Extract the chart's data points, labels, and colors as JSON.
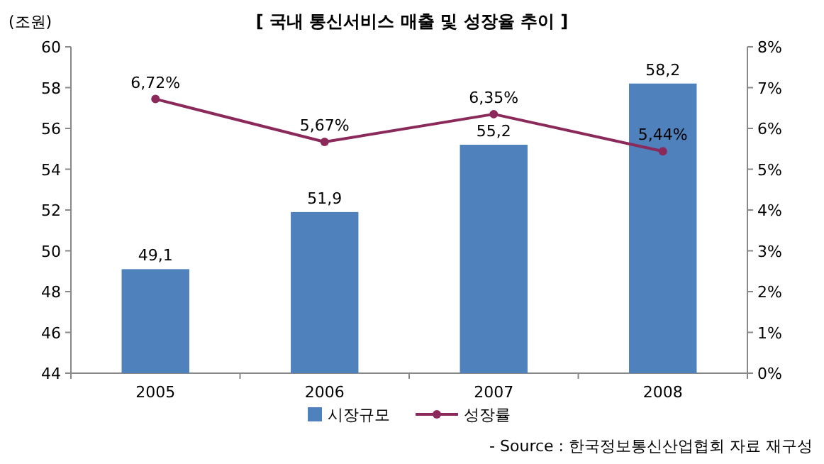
{
  "chart_data": {
    "type": "bar",
    "title": "[ 국내 통신서비스 매출 및 성장율 추이 ]",
    "ylabel": "(조원)",
    "annotations": [
      "- Source : 한국정보통신산업협회 자료 재구성"
    ],
    "categories": [
      "2005",
      "2006",
      "2007",
      "2008"
    ],
    "series": [
      {
        "name": "시장규모",
        "color": "#4f81bd",
        "values": [
          49.1,
          51.9,
          55.2,
          58.2
        ],
        "value_labels": [
          "49,1",
          "51,9",
          "55,2",
          "58,2"
        ]
      },
      {
        "name": "성장률",
        "type": "line",
        "axis": "y2",
        "color": "#8b2a5a",
        "values": [
          6.72,
          5.67,
          6.35,
          5.44
        ],
        "value_labels": [
          "6,72%",
          "5,67%",
          "6,35%",
          "5,44%"
        ]
      }
    ],
    "marker": "circle",
    "legend": "bottom",
    "ylim": [
      44,
      60
    ],
    "yticks": [
      44,
      46,
      48,
      50,
      52,
      54,
      56,
      58,
      60
    ],
    "y2lim": [
      0,
      8
    ],
    "y2ticks": [
      {
        "value": 0,
        "label": "0%"
      },
      {
        "value": 1,
        "label": "1%"
      },
      {
        "value": 2,
        "label": "2%"
      },
      {
        "value": 3,
        "label": "3%"
      },
      {
        "value": 4,
        "label": "4%"
      },
      {
        "value": 5,
        "label": "5%"
      },
      {
        "value": 6,
        "label": "6%"
      },
      {
        "value": 7,
        "label": "7%"
      },
      {
        "value": 8,
        "label": "8%"
      }
    ]
  }
}
